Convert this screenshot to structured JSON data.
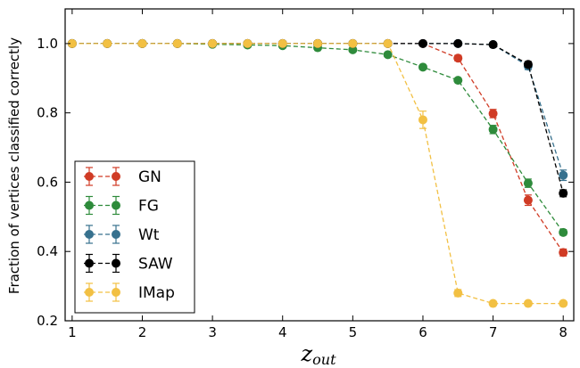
{
  "chart_data": {
    "type": "line",
    "xlabel": "z",
    "xlabel_sub": "out",
    "ylabel": "Fraction of vertices classified correctly",
    "xlim": [
      0.9,
      8.15
    ],
    "ylim": [
      0.2,
      1.1
    ],
    "xticks": [
      1,
      2,
      3,
      4,
      5,
      6,
      7,
      8
    ],
    "yticks": [
      0.2,
      0.4,
      0.6,
      0.8,
      1.0
    ],
    "ytick_labels": [
      "0.2",
      "0.4",
      "0.6",
      "0.8",
      "1.0"
    ],
    "legend_position": "lower-left",
    "x": [
      1.0,
      1.5,
      2.0,
      2.5,
      3.0,
      3.5,
      4.0,
      4.5,
      5.0,
      5.5,
      6.0,
      6.5,
      7.0,
      7.5,
      8.0
    ],
    "series": [
      {
        "name": "GN",
        "color": "#d03b25",
        "values": [
          1.0,
          1.0,
          1.0,
          1.0,
          1.0,
          1.0,
          1.0,
          1.0,
          1.0,
          1.0,
          1.0,
          0.958,
          0.798,
          0.548,
          0.397
        ],
        "errors": [
          0,
          0,
          0,
          0,
          0,
          0,
          0,
          0,
          0,
          0,
          0,
          0.008,
          0.012,
          0.015,
          0.01
        ]
      },
      {
        "name": "FG",
        "color": "#2e8b3b",
        "values": [
          1.0,
          1.0,
          1.0,
          1.0,
          0.998,
          0.996,
          0.994,
          0.988,
          0.982,
          0.968,
          0.932,
          0.894,
          0.752,
          0.597,
          0.455
        ],
        "errors": [
          0,
          0,
          0,
          0,
          0,
          0,
          0,
          0,
          0,
          0,
          0,
          0,
          0.012,
          0.012,
          0.008
        ]
      },
      {
        "name": "Wt",
        "color": "#37718e",
        "values": [
          1.0,
          1.0,
          1.0,
          1.0,
          1.0,
          1.0,
          1.0,
          1.0,
          1.0,
          1.0,
          1.0,
          1.0,
          0.997,
          0.935,
          0.62
        ],
        "errors": [
          0,
          0,
          0,
          0,
          0,
          0,
          0,
          0,
          0,
          0,
          0,
          0,
          0,
          0.01,
          0.015
        ]
      },
      {
        "name": "SAW",
        "color": "#000000",
        "values": [
          1.0,
          1.0,
          1.0,
          1.0,
          1.0,
          1.0,
          1.0,
          1.0,
          1.0,
          1.0,
          1.0,
          1.0,
          0.997,
          0.94,
          0.568
        ],
        "errors": [
          0,
          0,
          0,
          0,
          0,
          0,
          0,
          0,
          0,
          0,
          0,
          0,
          0,
          0.008,
          0.01
        ]
      },
      {
        "name": "IMap",
        "color": "#f2c043",
        "values": [
          1.0,
          1.0,
          1.0,
          1.0,
          1.0,
          1.0,
          1.0,
          1.0,
          1.0,
          1.0,
          0.78,
          0.28,
          0.25,
          0.25,
          0.25
        ],
        "errors": [
          0,
          0,
          0,
          0,
          0,
          0,
          0,
          0,
          0,
          0,
          0.025,
          0.01,
          0,
          0,
          0
        ]
      }
    ]
  }
}
